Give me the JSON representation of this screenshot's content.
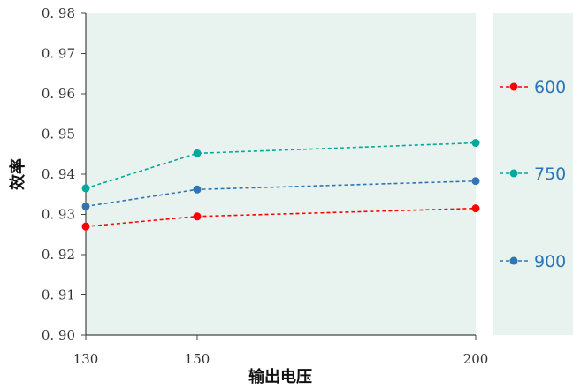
{
  "chart_data": {
    "type": "line",
    "xlabel": "输出电压",
    "ylabel": "效率",
    "x": [
      130,
      150,
      200
    ],
    "x_tick_labels": [
      "130",
      "150",
      "200"
    ],
    "ylim": [
      0.9,
      0.98
    ],
    "y_ticks": [
      0.9,
      0.91,
      0.92,
      0.93,
      0.94,
      0.95,
      0.96,
      0.97,
      0.98
    ],
    "y_tick_labels": [
      "0. 90",
      "0. 91",
      "0. 92",
      "0. 93",
      "0. 94",
      "0. 95",
      "0. 96",
      "0. 97",
      "0. 98"
    ],
    "grid": false,
    "legend_position": "right",
    "plot_background": "#e8f2ee",
    "legend_background": "#e8f2ee",
    "series": [
      {
        "name": "600",
        "color": "#ff0000",
        "line_style": "dashed",
        "marker": "circle",
        "values": [
          0.927,
          0.9295,
          0.9315
        ]
      },
      {
        "name": "750",
        "color": "#00a99d",
        "line_style": "dashed",
        "marker": "circle",
        "values": [
          0.9365,
          0.9452,
          0.9478
        ]
      },
      {
        "name": "900",
        "color": "#2e75b6",
        "line_style": "dashed",
        "marker": "circle",
        "values": [
          0.932,
          0.9362,
          0.9383
        ]
      }
    ]
  }
}
